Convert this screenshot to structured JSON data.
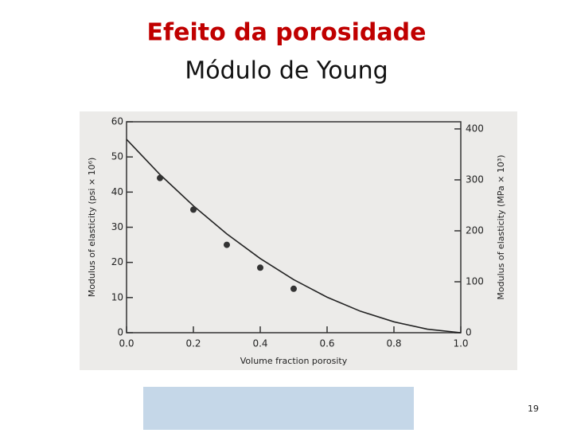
{
  "slide": {
    "title_line1": "Efeito da porosidade",
    "title_line2": "Módulo de Young",
    "page_number": "19"
  },
  "chart_data": {
    "type": "scatter",
    "x_label": "Volume fraction porosity",
    "y_label": "Modulus of elasticity (psi × 10⁶)",
    "y2_label": "Modulus of elasticity (MPa × 10³)",
    "points": {
      "x": [
        0.1,
        0.2,
        0.3,
        0.4,
        0.5
      ],
      "values": [
        44,
        35,
        25,
        18.5,
        12.5
      ],
      "color": "#333333"
    },
    "curve": {
      "x": [
        0,
        0.1,
        0.2,
        0.3,
        0.4,
        0.5,
        0.6,
        0.7,
        0.8,
        0.9,
        1.0
      ],
      "values": [
        55,
        45,
        36.1,
        28.1,
        21.1,
        15.1,
        10.1,
        6.1,
        3.1,
        1.0,
        0
      ],
      "color": "#222222"
    },
    "xlim": [
      0,
      1
    ],
    "xticks": [
      {
        "value": 0,
        "label": "0.0"
      },
      0.2,
      0.4,
      0.6,
      0.8,
      {
        "value": 1,
        "label": "1.0"
      }
    ],
    "ylim": [
      0,
      60
    ],
    "yticks": [
      0,
      10,
      20,
      30,
      40,
      50,
      60
    ],
    "y2lim": [
      0,
      414
    ],
    "y2ticks": [
      0,
      100,
      200,
      300,
      400
    ],
    "grid": false
  }
}
